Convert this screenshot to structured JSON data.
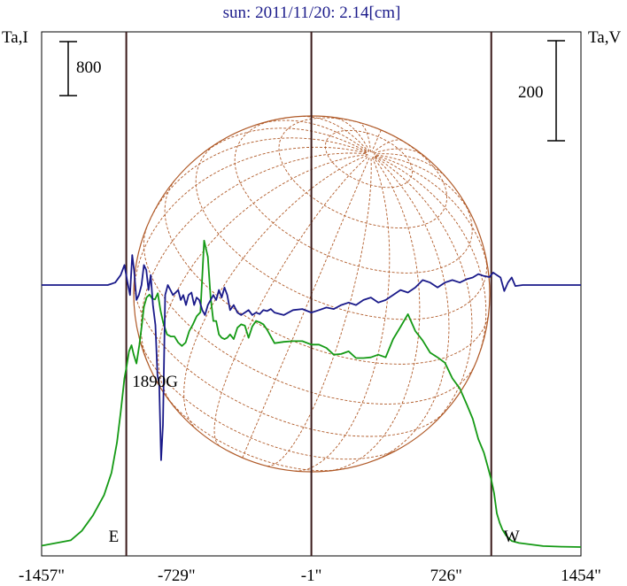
{
  "chart_data": {
    "type": "line",
    "title": "sun: 2011/11/20: 2.14[cm]",
    "left_axis_label": "Ta,I",
    "right_axis_label": "Ta,V",
    "x_unit": "arcsec",
    "xlim": [
      -1457,
      1454
    ],
    "x_ticks": [
      {
        "value": -1457,
        "label": "-1457\""
      },
      {
        "value": -729,
        "label": "-729\""
      },
      {
        "value": -1,
        "label": "-1\""
      },
      {
        "value": 726,
        "label": "726\""
      },
      {
        "value": 1454,
        "label": "1454\""
      }
    ],
    "scale_bars": {
      "intensity": "800",
      "polarization": "200"
    },
    "limb_markers": [
      {
        "label": "E",
        "x": -1000
      },
      {
        "label": "W",
        "x": 970
      }
    ],
    "center_marker_x": -1,
    "annotation": {
      "text": "1890G",
      "x": -820
    },
    "disk_grid": {
      "color": "#b05a28",
      "meridians_every_deg": 15,
      "parallels_every_deg": 15
    },
    "series": [
      {
        "key": "intensity",
        "color": "#159a15",
        "x": [
          -1457,
          -1300,
          -1240,
          -1180,
          -1120,
          -1080,
          -1050,
          -1030,
          -1010,
          -998,
          -985,
          -972,
          -960,
          -945,
          -930,
          -918,
          -905,
          -890,
          -875,
          -860,
          -845,
          -830,
          -815,
          -800,
          -780,
          -760,
          -740,
          -720,
          -700,
          -680,
          -660,
          -640,
          -620,
          -600,
          -580,
          -560,
          -545,
          -530,
          -515,
          -500,
          -485,
          -470,
          -455,
          -440,
          -420,
          -400,
          -380,
          -360,
          -340,
          -320,
          -300,
          -280,
          -260,
          -240,
          -200,
          -150,
          -100,
          -50,
          -1,
          40,
          80,
          120,
          160,
          200,
          240,
          280,
          320,
          360,
          400,
          440,
          480,
          520,
          560,
          600,
          640,
          680,
          720,
          760,
          800,
          840,
          870,
          900,
          930,
          950,
          970,
          985,
          1000,
          1015,
          1030,
          1050,
          1080,
          1120,
          1180,
          1250,
          1350,
          1454
        ],
        "y": [
          20,
          100,
          240,
          470,
          770,
          1100,
          1550,
          2000,
          2500,
          2680,
          2900,
          2990,
          2850,
          2720,
          2990,
          3250,
          3560,
          3700,
          3740,
          3680,
          3670,
          3760,
          3500,
          3320,
          3150,
          3120,
          3120,
          3030,
          2980,
          3030,
          3200,
          3300,
          3420,
          3480,
          4540,
          4300,
          3700,
          3350,
          3350,
          3150,
          3100,
          3080,
          3100,
          3150,
          3080,
          3250,
          3300,
          3280,
          3100,
          3270,
          3350,
          3330,
          3300,
          3220,
          3020,
          3040,
          3050,
          3050,
          3000,
          3000,
          2950,
          2850,
          2860,
          2900,
          2800,
          2800,
          2810,
          2850,
          2810,
          3080,
          3260,
          3450,
          3200,
          3060,
          2880,
          2810,
          2730,
          2500,
          2350,
          2100,
          1900,
          1600,
          1400,
          1200,
          1000,
          800,
          500,
          360,
          260,
          170,
          90,
          60,
          40,
          15,
          5,
          0
        ]
      },
      {
        "key": "polarization",
        "color": "#1a1a8a",
        "x": [
          -1457,
          -1100,
          -1060,
          -1030,
          -1010,
          -995,
          -980,
          -968,
          -958,
          -945,
          -932,
          -918,
          -905,
          -892,
          -880,
          -868,
          -856,
          -843,
          -832,
          -822,
          -812,
          -802,
          -790,
          -776,
          -762,
          -748,
          -734,
          -720,
          -706,
          -692,
          -678,
          -664,
          -648,
          -634,
          -620,
          -606,
          -590,
          -575,
          -560,
          -545,
          -530,
          -515,
          -500,
          -485,
          -470,
          -455,
          -440,
          -420,
          -400,
          -380,
          -360,
          -340,
          -320,
          -300,
          -280,
          -260,
          -240,
          -220,
          -200,
          -150,
          -100,
          -50,
          -1,
          40,
          80,
          120,
          160,
          200,
          240,
          280,
          320,
          360,
          400,
          440,
          480,
          520,
          560,
          600,
          640,
          680,
          720,
          760,
          800,
          840,
          870,
          900,
          930,
          960,
          980,
          1000,
          1020,
          1040,
          1060,
          1080,
          1100,
          1140,
          1454
        ],
        "y": [
          0,
          0,
          5,
          20,
          40,
          8,
          -20,
          60,
          30,
          -30,
          -20,
          0,
          40,
          30,
          -10,
          20,
          -40,
          -80,
          -180,
          -200,
          -350,
          -280,
          -20,
          0,
          -10,
          -20,
          -15,
          -10,
          -30,
          -20,
          -40,
          -20,
          -15,
          -40,
          -25,
          -30,
          -50,
          -60,
          -40,
          -30,
          -20,
          -30,
          -10,
          -25,
          -5,
          -20,
          -50,
          -40,
          -55,
          -60,
          -55,
          -50,
          -60,
          -55,
          -58,
          -50,
          -52,
          -48,
          -55,
          -60,
          -50,
          -48,
          -55,
          -50,
          -45,
          -48,
          -40,
          -35,
          -40,
          -30,
          -25,
          -35,
          -30,
          -20,
          -10,
          -15,
          -5,
          10,
          5,
          -5,
          5,
          10,
          5,
          12,
          15,
          22,
          18,
          16,
          25,
          20,
          15,
          -12,
          5,
          15,
          -2,
          0,
          0
        ]
      }
    ]
  }
}
